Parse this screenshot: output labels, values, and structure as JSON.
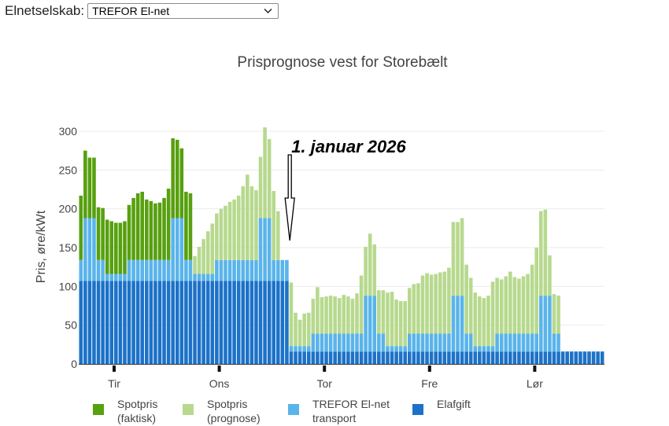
{
  "selector": {
    "label": "Elnetselskab:",
    "value": "TREFOR El-net"
  },
  "chart_data": {
    "type": "bar",
    "stacked": true,
    "title": "Prisprognose vest for Storebælt",
    "ylabel": "Pris, øre/kWt",
    "xlabel": "",
    "ylim": [
      0,
      310
    ],
    "yticks": [
      0,
      50,
      100,
      150,
      200,
      250,
      300
    ],
    "grid": true,
    "day_ticks": [
      {
        "label": "Tir",
        "hour": 0
      },
      {
        "label": "Ons",
        "hour": 24
      },
      {
        "label": "Tor",
        "hour": 48
      },
      {
        "label": "Fre",
        "hour": 72
      },
      {
        "label": "Lør",
        "hour": 96
      }
    ],
    "annotation": {
      "text": "1. januar 2026",
      "hour": 48
    },
    "legend": [
      {
        "name": "Spotpris\n(faktisk)",
        "color": "#57A00F"
      },
      {
        "name": "Spotpris\n(prognose)",
        "color": "#B7D98E"
      },
      {
        "name": "TREFOR El-net\ntransport",
        "color": "#5AB4EA"
      },
      {
        "name": "Elafgift",
        "color": "#1C72C8"
      }
    ],
    "series": [
      {
        "name": "Elafgift",
        "color": "#1C72C8",
        "values": [
          107,
          107,
          107,
          107,
          107,
          107,
          107,
          107,
          107,
          107,
          107,
          107,
          107,
          107,
          107,
          107,
          107,
          107,
          107,
          107,
          107,
          107,
          107,
          107,
          107,
          107,
          107,
          107,
          107,
          107,
          107,
          107,
          107,
          107,
          107,
          107,
          107,
          107,
          107,
          107,
          107,
          107,
          107,
          107,
          107,
          107,
          107,
          107,
          16,
          16,
          16,
          16,
          16,
          16,
          16,
          16,
          16,
          16,
          16,
          16,
          16,
          16,
          16,
          16,
          16,
          16,
          16,
          16,
          16,
          16,
          16,
          16,
          16,
          16,
          16,
          16,
          16,
          16,
          16,
          16,
          16,
          16,
          16,
          16,
          16,
          16,
          16,
          16,
          16,
          16,
          16,
          16,
          16,
          16,
          16,
          16,
          16,
          16,
          16,
          16,
          16,
          16,
          16,
          16,
          16,
          16,
          16,
          16,
          16,
          16,
          16,
          16,
          16,
          16,
          16,
          16,
          16,
          16,
          16,
          16
        ]
      },
      {
        "name": "TREFOR El-net transport",
        "color": "#5AB4EA",
        "values": [
          27,
          81,
          81,
          81,
          27,
          27,
          9,
          9,
          9,
          9,
          9,
          27,
          27,
          27,
          27,
          27,
          27,
          27,
          27,
          27,
          27,
          81,
          81,
          81,
          27,
          27,
          9,
          9,
          9,
          9,
          9,
          27,
          27,
          27,
          27,
          27,
          27,
          27,
          27,
          27,
          27,
          81,
          81,
          81,
          27,
          27,
          27,
          27,
          7,
          7,
          7,
          7,
          7,
          23,
          23,
          23,
          23,
          23,
          23,
          23,
          23,
          23,
          23,
          23,
          23,
          72,
          72,
          72,
          23,
          23,
          7,
          7,
          7,
          7,
          7,
          23,
          23,
          23,
          23,
          23,
          23,
          23,
          23,
          23,
          23,
          72,
          72,
          72,
          23,
          23,
          7,
          7,
          7,
          7,
          7,
          23,
          23,
          23,
          23,
          23,
          23,
          23,
          23,
          23,
          23,
          72,
          72,
          72,
          23,
          23
        ]
      },
      {
        "name": "Spotpris (faktisk)",
        "color": "#57A00F",
        "values": [
          83,
          87,
          78,
          78,
          68,
          67,
          70,
          68,
          66,
          66,
          68,
          71,
          80,
          86,
          88,
          78,
          76,
          73,
          74,
          80,
          92,
          103,
          101,
          90,
          88,
          86,
          0,
          0,
          0,
          0,
          0,
          0,
          0,
          0,
          0,
          0,
          0,
          0,
          0,
          0,
          0,
          0,
          0,
          0,
          0,
          0,
          0,
          0
        ]
      },
      {
        "name": "Spotpris (prognose)",
        "color": "#B7D98E",
        "values": [
          0,
          0,
          0,
          0,
          0,
          0,
          0,
          0,
          0,
          0,
          0,
          0,
          0,
          0,
          0,
          0,
          0,
          0,
          0,
          0,
          0,
          0,
          0,
          0,
          0,
          0,
          23,
          35,
          45,
          55,
          65,
          60,
          66,
          70,
          75,
          78,
          83,
          95,
          110,
          95,
          90,
          79,
          117,
          102,
          89,
          63,
          0,
          0,
          82,
          43,
          34,
          42,
          43,
          45,
          60,
          47,
          48,
          49,
          48,
          46,
          50,
          48,
          45,
          52,
          75,
          63,
          80,
          66,
          56,
          56,
          69,
          70,
          60,
          58,
          58,
          59,
          64,
          65,
          75,
          78,
          76,
          77,
          79,
          80,
          85,
          95,
          95,
          100,
          89,
          72,
          69,
          64,
          62,
          65,
          83,
          72,
          70,
          74,
          80,
          73,
          71,
          74,
          77,
          89,
          111,
          109,
          111,
          52,
          51,
          49
        ]
      }
    ]
  }
}
